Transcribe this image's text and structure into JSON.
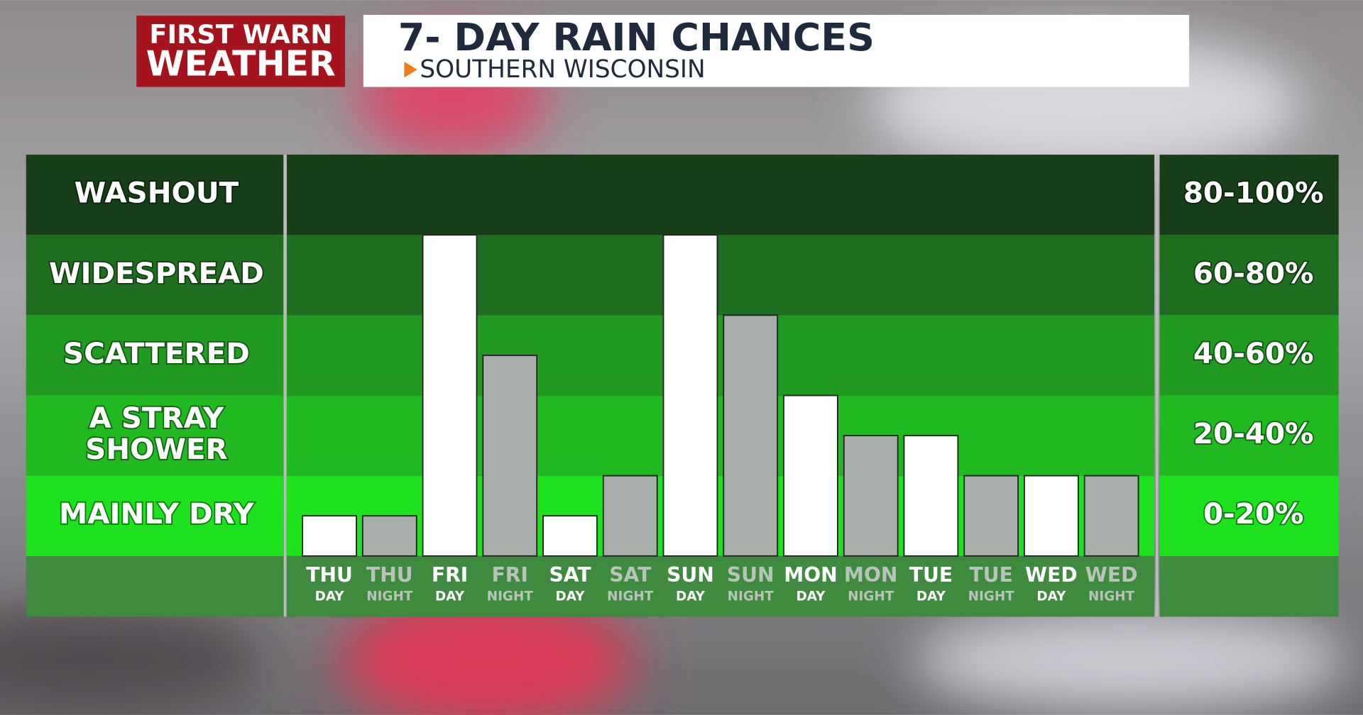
{
  "logo": {
    "line1": "FIRST WARN",
    "line2": "WEATHER"
  },
  "chart_data": {
    "type": "bar",
    "title": "7- DAY RAIN CHANCES",
    "subtitle": "SOUTHERN WISCONSIN",
    "categories": [
      {
        "day": "THU",
        "period": "DAY"
      },
      {
        "day": "THU",
        "period": "NIGHT"
      },
      {
        "day": "FRI",
        "period": "DAY"
      },
      {
        "day": "FRI",
        "period": "NIGHT"
      },
      {
        "day": "SAT",
        "period": "DAY"
      },
      {
        "day": "SAT",
        "period": "NIGHT"
      },
      {
        "day": "SUN",
        "period": "DAY"
      },
      {
        "day": "SUN",
        "period": "NIGHT"
      },
      {
        "day": "MON",
        "period": "DAY"
      },
      {
        "day": "MON",
        "period": "NIGHT"
      },
      {
        "day": "TUE",
        "period": "DAY"
      },
      {
        "day": "TUE",
        "period": "NIGHT"
      },
      {
        "day": "WED",
        "period": "DAY"
      },
      {
        "day": "WED",
        "period": "NIGHT"
      }
    ],
    "values": [
      10,
      10,
      80,
      50,
      10,
      20,
      80,
      60,
      40,
      30,
      30,
      20,
      20,
      20
    ],
    "colors": [
      "#ffffff",
      "#a9aeaa",
      "#ffffff",
      "#a9aeaa",
      "#ffffff",
      "#a9aeaa",
      "#ffffff",
      "#a9aeaa",
      "#ffffff",
      "#a9aeaa",
      "#ffffff",
      "#a9aeaa",
      "#ffffff",
      "#a9aeaa"
    ],
    "ylim": [
      0,
      100
    ],
    "yticks": [
      0,
      20,
      40,
      60,
      80,
      100
    ],
    "bands": [
      {
        "label": [
          "MAINLY DRY"
        ],
        "range": "0-20%",
        "color": "#1de21d"
      },
      {
        "label": [
          "A STRAY",
          "SHOWER"
        ],
        "range": "20-40%",
        "color": "#20b920"
      },
      {
        "label": [
          "SCATTERED"
        ],
        "range": "40-60%",
        "color": "#219a21"
      },
      {
        "label": [
          "WIDESPREAD"
        ],
        "range": "60-80%",
        "color": "#1f6e1f"
      },
      {
        "label": [
          "WASHOUT"
        ],
        "range": "80-100%",
        "color": "#173f17"
      }
    ]
  }
}
